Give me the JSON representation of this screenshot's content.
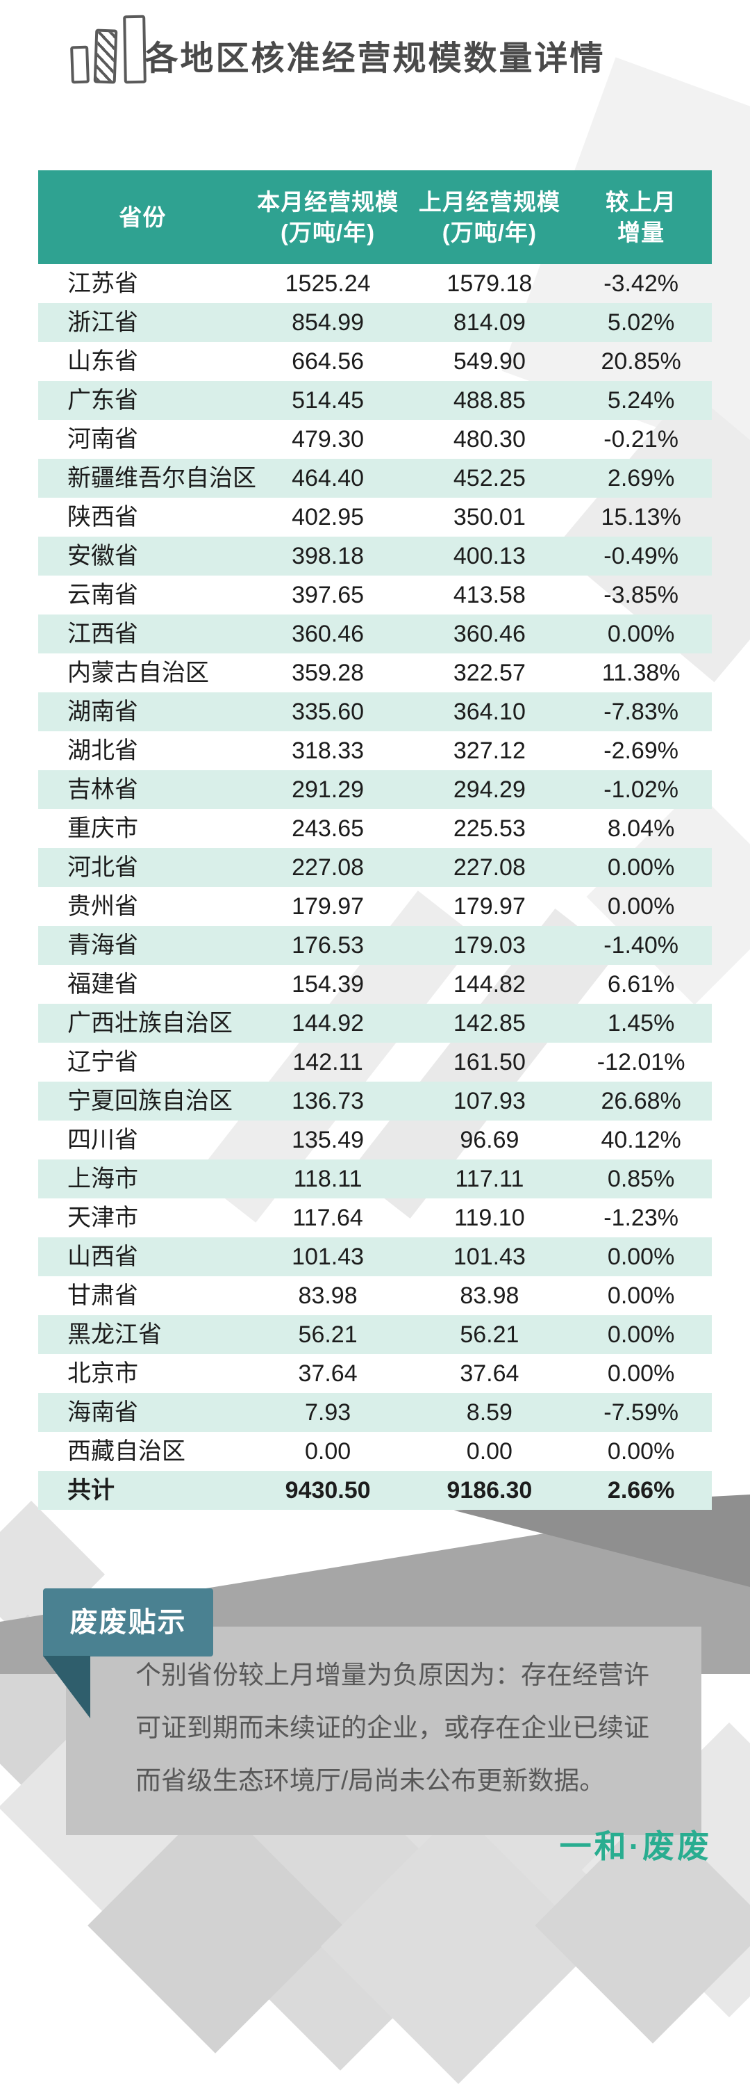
{
  "page": {
    "title": "各地区核准经营规模数量详情"
  },
  "icons": {
    "header": "bar-chart-icon"
  },
  "chart_data": {
    "type": "table",
    "title": "各地区核准经营规模数量详情",
    "columns": [
      {
        "line1": "省份",
        "line2": ""
      },
      {
        "line1": "本月经营规模",
        "line2": "(万吨/年)"
      },
      {
        "line1": "上月经营规模",
        "line2": "(万吨/年)"
      },
      {
        "line1": "较上月",
        "line2": "增量"
      }
    ],
    "rows": [
      [
        "江苏省",
        "1525.24",
        "1579.18",
        "-3.42%"
      ],
      [
        "浙江省",
        "854.99",
        "814.09",
        "5.02%"
      ],
      [
        "山东省",
        "664.56",
        "549.90",
        "20.85%"
      ],
      [
        "广东省",
        "514.45",
        "488.85",
        "5.24%"
      ],
      [
        "河南省",
        "479.30",
        "480.30",
        "-0.21%"
      ],
      [
        "新疆维吾尔自治区",
        "464.40",
        "452.25",
        "2.69%"
      ],
      [
        "陕西省",
        "402.95",
        "350.01",
        "15.13%"
      ],
      [
        "安徽省",
        "398.18",
        "400.13",
        "-0.49%"
      ],
      [
        "云南省",
        "397.65",
        "413.58",
        "-3.85%"
      ],
      [
        "江西省",
        "360.46",
        "360.46",
        "0.00%"
      ],
      [
        "内蒙古自治区",
        "359.28",
        "322.57",
        "11.38%"
      ],
      [
        "湖南省",
        "335.60",
        "364.10",
        "-7.83%"
      ],
      [
        "湖北省",
        "318.33",
        "327.12",
        "-2.69%"
      ],
      [
        "吉林省",
        "291.29",
        "294.29",
        "-1.02%"
      ],
      [
        "重庆市",
        "243.65",
        "225.53",
        "8.04%"
      ],
      [
        "河北省",
        "227.08",
        "227.08",
        "0.00%"
      ],
      [
        "贵州省",
        "179.97",
        "179.97",
        "0.00%"
      ],
      [
        "青海省",
        "176.53",
        "179.03",
        "-1.40%"
      ],
      [
        "福建省",
        "154.39",
        "144.82",
        "6.61%"
      ],
      [
        "广西壮族自治区",
        "144.92",
        "142.85",
        "1.45%"
      ],
      [
        "辽宁省",
        "142.11",
        "161.50",
        "-12.01%"
      ],
      [
        "宁夏回族自治区",
        "136.73",
        "107.93",
        "26.68%"
      ],
      [
        "四川省",
        "135.49",
        "96.69",
        "40.12%"
      ],
      [
        "上海市",
        "118.11",
        "117.11",
        "0.85%"
      ],
      [
        "天津市",
        "117.64",
        "119.10",
        "-1.23%"
      ],
      [
        "山西省",
        "101.43",
        "101.43",
        "0.00%"
      ],
      [
        "甘肃省",
        "83.98",
        "83.98",
        "0.00%"
      ],
      [
        "黑龙江省",
        "56.21",
        "56.21",
        "0.00%"
      ],
      [
        "北京市",
        "37.64",
        "37.64",
        "0.00%"
      ],
      [
        "海南省",
        "7.93",
        "8.59",
        "-7.59%"
      ],
      [
        "西藏自治区",
        "0.00",
        "0.00",
        "0.00%"
      ]
    ],
    "total": [
      "共计",
      "9430.50",
      "9186.30",
      "2.66%"
    ]
  },
  "note": {
    "tab_label": "废废贴示",
    "text": "个别省份较上月增量为负原因为：存在经营许可证到期而未续证的企业，或存在企业已续证而省级生态环境厅/局尚未公布更新数据。"
  },
  "footer": {
    "brand": "一和·废废"
  },
  "colors": {
    "header_teal": "#2FA291",
    "row_mint": "#D9EFE9",
    "tab_teal": "#4A8191",
    "note_gray": "#C3C3C3",
    "brand_green": "#29AD90"
  }
}
